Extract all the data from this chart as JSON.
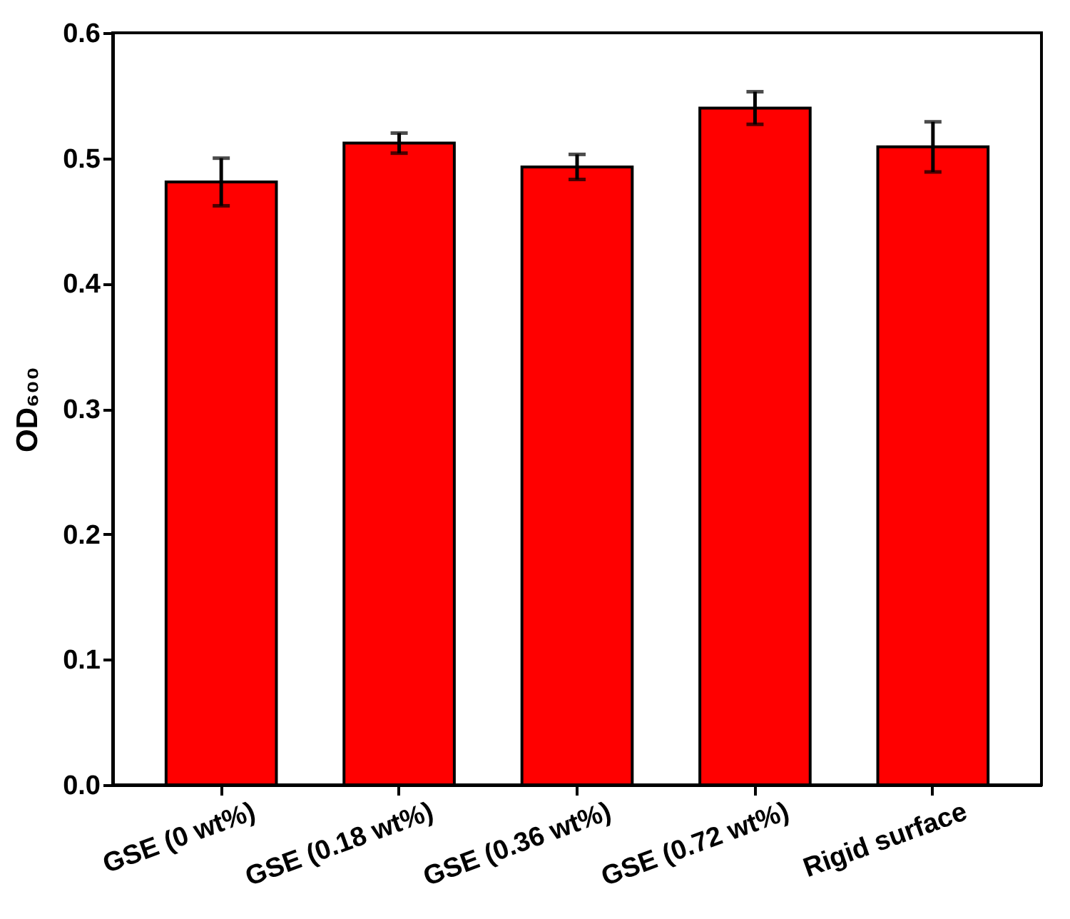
{
  "chart_data": {
    "type": "bar",
    "ylabel": "OD₆₀₀",
    "categories": [
      "GSE (0 wt%)",
      "GSE (0.18 wt%)",
      "GSE (0.36 wt%)",
      "GSE (0.72 wt%)",
      "Rigid surface"
    ],
    "values": [
      0.481,
      0.512,
      0.493,
      0.54,
      0.509
    ],
    "errors": [
      0.019,
      0.008,
      0.01,
      0.013,
      0.02
    ],
    "color": "#ff0000",
    "ylim": [
      0,
      0.6
    ],
    "yticks": [
      {
        "value": 0,
        "label": "0.0"
      },
      {
        "value": 0.1,
        "label": "0.1"
      },
      {
        "value": 0.2,
        "label": "0.2"
      },
      {
        "value": 0.3,
        "label": "0.3"
      },
      {
        "value": 0.4,
        "label": "0.4"
      },
      {
        "value": 0.5,
        "label": "0.5"
      },
      {
        "value": 0.6,
        "label": "0.6"
      }
    ],
    "grid": false
  }
}
